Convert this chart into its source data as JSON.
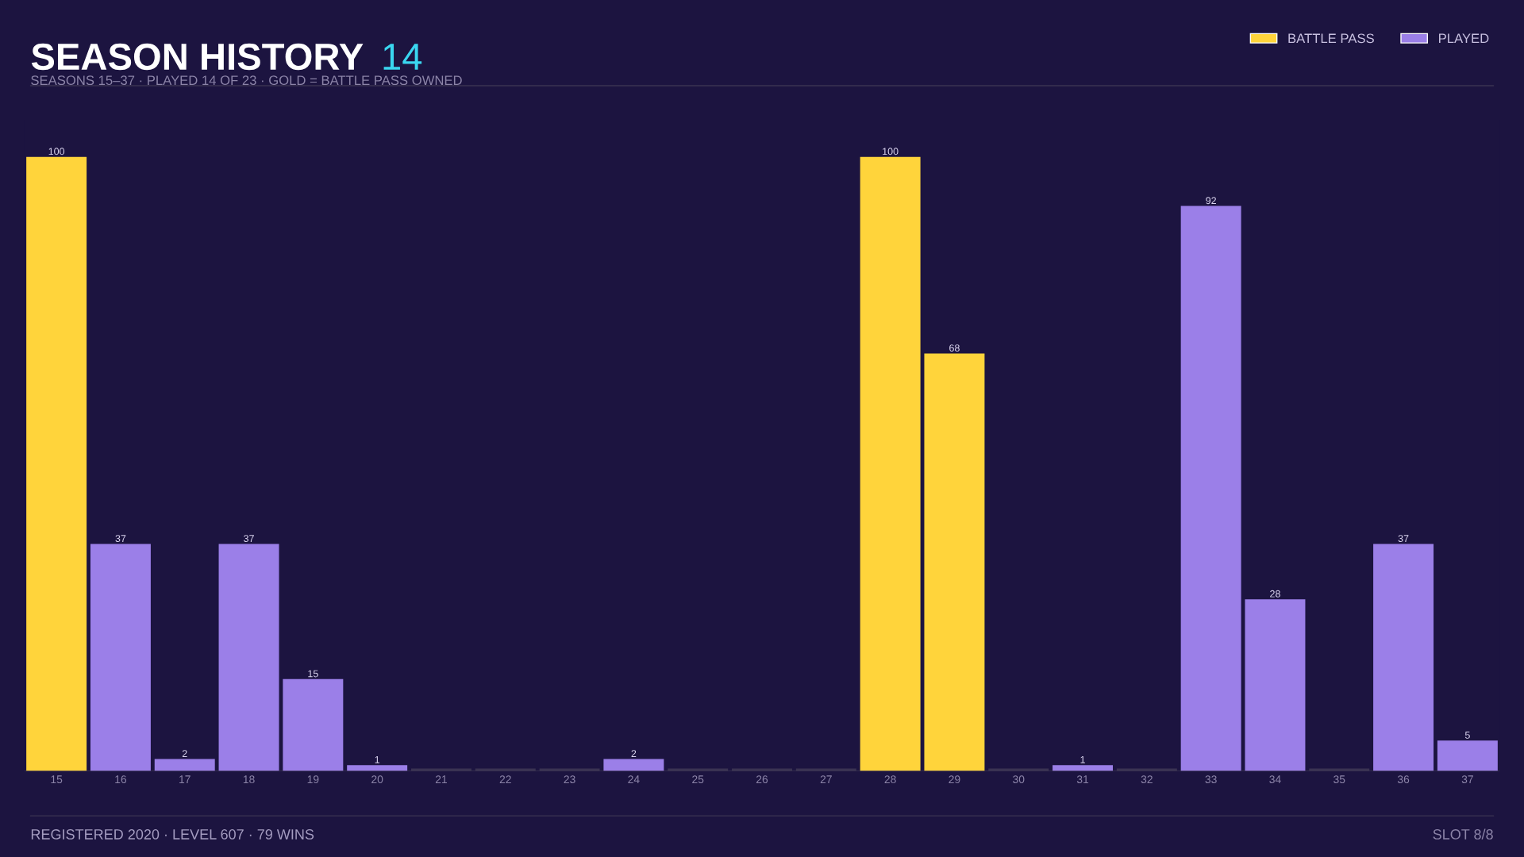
{
  "chart_data": {
    "type": "bar",
    "title": "SEASON HISTORY",
    "subtitle": "SEASONS 15–37 · PLAYED 14 OF 23 · GOLD = BATTLE PASS OWNED",
    "categories": [
      "15",
      "16",
      "17",
      "18",
      "19",
      "20",
      "21",
      "22",
      "23",
      "24",
      "25",
      "26",
      "27",
      "28",
      "29",
      "30",
      "31",
      "32",
      "33",
      "34",
      "35",
      "36",
      "37"
    ],
    "series": [
      {
        "name": "BATTLE PASS",
        "color": "#ffd43b",
        "values": [
          100,
          null,
          null,
          null,
          null,
          null,
          null,
          null,
          null,
          null,
          null,
          null,
          null,
          100,
          68,
          null,
          null,
          null,
          null,
          null,
          null,
          null,
          null
        ],
        "value_labels": [
          "100",
          null,
          null,
          null,
          null,
          null,
          null,
          null,
          null,
          null,
          null,
          null,
          null,
          "100",
          "68",
          null,
          null,
          null,
          null,
          null,
          null,
          null,
          null
        ]
      },
      {
        "name": "PLAYED",
        "color": "#9b7fe8",
        "colors": [
          null,
          "#9b7fe8",
          "#9b7fe8",
          "#9b7fe8",
          "#9b7fe8",
          "#9b7fe8",
          "#3a3352",
          "#3a3352",
          "#3a3352",
          "#9b7fe8",
          "#3a3352",
          "#3a3352",
          "#3a3352",
          null,
          null,
          "#3a3352",
          "#9b7fe8",
          "#3a3352",
          "#9b7fe8",
          "#9b7fe8",
          "#3a3352",
          "#9b7fe8",
          "#9b7fe8"
        ],
        "values": [
          null,
          37,
          2,
          37,
          15,
          1,
          0,
          0,
          0,
          2,
          0,
          0,
          0,
          null,
          null,
          0,
          1,
          0,
          92,
          28,
          0,
          37,
          5
        ],
        "value_labels": [
          null,
          "37",
          "2",
          "37",
          "15",
          "1",
          null,
          null,
          null,
          "2",
          null,
          null,
          null,
          null,
          null,
          null,
          "1",
          null,
          "92",
          "28",
          null,
          "37",
          "5"
        ]
      }
    ],
    "legend": "top right",
    "grid": false,
    "tick_labels": "x",
    "annotations": [
      "14",
      "REGISTERED 2020 · LEVEL 607 · 79 WINS",
      "SLOT 8/8"
    ]
  }
}
